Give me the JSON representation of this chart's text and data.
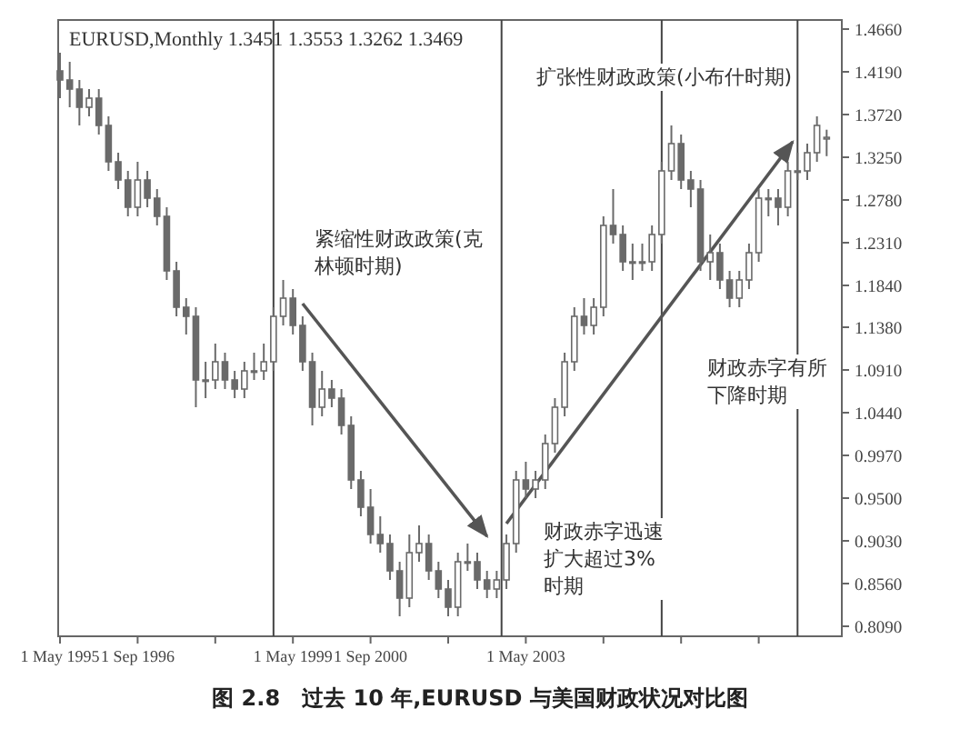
{
  "chart_data": {
    "type": "candlestick",
    "title": "EURUSD,Monthly  1.3451 1.3553 1.3262 1.3469",
    "color": "#6a6a6a",
    "x": [
      "1995-05",
      "1995-07",
      "1995-09",
      "1995-11",
      "1996-01",
      "1996-03",
      "1996-05",
      "1996-07",
      "1996-09",
      "1996-11",
      "1997-01",
      "1997-03",
      "1997-05",
      "1997-07",
      "1997-09",
      "1997-11",
      "1998-01",
      "1998-03",
      "1998-05",
      "1998-07",
      "1998-09",
      "1998-11",
      "1999-01",
      "1999-03",
      "1999-05",
      "1999-07",
      "1999-09",
      "1999-11",
      "2000-01",
      "2000-03",
      "2000-05",
      "2000-07",
      "2000-09",
      "2000-11",
      "2001-01",
      "2001-03",
      "2001-05",
      "2001-07",
      "2001-09",
      "2001-11",
      "2002-01",
      "2002-03",
      "2002-05",
      "2002-07",
      "2002-09",
      "2002-11",
      "2003-01",
      "2003-03",
      "2003-05",
      "2003-07",
      "2003-09",
      "2003-11",
      "2004-01",
      "2004-03",
      "2004-05",
      "2004-07",
      "2004-09",
      "2004-11",
      "2005-01",
      "2005-03",
      "2005-05",
      "2005-07",
      "2005-09",
      "2005-11",
      "2006-01",
      "2006-03",
      "2006-05",
      "2006-07",
      "2006-09",
      "2006-11",
      "2007-01",
      "2007-03",
      "2007-05",
      "2007-07",
      "2007-09",
      "2007-11",
      "2008-01",
      "2008-03",
      "2008-05",
      "2008-07"
    ],
    "ohlc": [
      [
        1.42,
        1.44,
        1.39,
        1.41
      ],
      [
        1.41,
        1.43,
        1.38,
        1.4
      ],
      [
        1.4,
        1.41,
        1.36,
        1.38
      ],
      [
        1.38,
        1.4,
        1.37,
        1.39
      ],
      [
        1.39,
        1.4,
        1.35,
        1.36
      ],
      [
        1.36,
        1.37,
        1.31,
        1.32
      ],
      [
        1.32,
        1.33,
        1.29,
        1.3
      ],
      [
        1.3,
        1.31,
        1.26,
        1.27
      ],
      [
        1.27,
        1.32,
        1.26,
        1.3
      ],
      [
        1.3,
        1.31,
        1.27,
        1.28
      ],
      [
        1.28,
        1.29,
        1.25,
        1.26
      ],
      [
        1.26,
        1.27,
        1.19,
        1.2
      ],
      [
        1.2,
        1.21,
        1.15,
        1.16
      ],
      [
        1.16,
        1.17,
        1.13,
        1.15
      ],
      [
        1.15,
        1.16,
        1.05,
        1.08
      ],
      [
        1.08,
        1.1,
        1.06,
        1.08
      ],
      [
        1.08,
        1.12,
        1.07,
        1.1
      ],
      [
        1.1,
        1.11,
        1.07,
        1.08
      ],
      [
        1.08,
        1.09,
        1.06,
        1.07
      ],
      [
        1.07,
        1.1,
        1.06,
        1.09
      ],
      [
        1.09,
        1.11,
        1.08,
        1.09
      ],
      [
        1.09,
        1.12,
        1.08,
        1.1
      ],
      [
        1.1,
        1.16,
        1.09,
        1.15
      ],
      [
        1.15,
        1.19,
        1.14,
        1.17
      ],
      [
        1.17,
        1.18,
        1.13,
        1.14
      ],
      [
        1.14,
        1.15,
        1.09,
        1.1
      ],
      [
        1.1,
        1.11,
        1.03,
        1.05
      ],
      [
        1.05,
        1.09,
        1.04,
        1.07
      ],
      [
        1.07,
        1.08,
        1.05,
        1.06
      ],
      [
        1.06,
        1.07,
        1.02,
        1.03
      ],
      [
        1.03,
        1.04,
        0.96,
        0.97
      ],
      [
        0.97,
        0.98,
        0.93,
        0.94
      ],
      [
        0.94,
        0.96,
        0.9,
        0.91
      ],
      [
        0.91,
        0.93,
        0.89,
        0.9
      ],
      [
        0.9,
        0.91,
        0.86,
        0.87
      ],
      [
        0.87,
        0.88,
        0.82,
        0.84
      ],
      [
        0.84,
        0.91,
        0.83,
        0.89
      ],
      [
        0.89,
        0.92,
        0.88,
        0.9
      ],
      [
        0.9,
        0.91,
        0.86,
        0.87
      ],
      [
        0.87,
        0.88,
        0.84,
        0.85
      ],
      [
        0.85,
        0.86,
        0.82,
        0.83
      ],
      [
        0.83,
        0.89,
        0.82,
        0.88
      ],
      [
        0.88,
        0.9,
        0.87,
        0.88
      ],
      [
        0.88,
        0.89,
        0.85,
        0.86
      ],
      [
        0.86,
        0.87,
        0.84,
        0.85
      ],
      [
        0.85,
        0.87,
        0.84,
        0.86
      ],
      [
        0.86,
        0.91,
        0.85,
        0.9
      ],
      [
        0.9,
        0.98,
        0.89,
        0.97
      ],
      [
        0.97,
        0.99,
        0.95,
        0.96
      ],
      [
        0.96,
        0.98,
        0.95,
        0.97
      ],
      [
        0.97,
        1.02,
        0.96,
        1.01
      ],
      [
        1.01,
        1.06,
        1.0,
        1.05
      ],
      [
        1.05,
        1.11,
        1.04,
        1.1
      ],
      [
        1.1,
        1.16,
        1.09,
        1.15
      ],
      [
        1.15,
        1.17,
        1.13,
        1.14
      ],
      [
        1.14,
        1.17,
        1.13,
        1.16
      ],
      [
        1.16,
        1.26,
        1.15,
        1.25
      ],
      [
        1.25,
        1.29,
        1.23,
        1.24
      ],
      [
        1.24,
        1.25,
        1.2,
        1.21
      ],
      [
        1.21,
        1.23,
        1.19,
        1.21
      ],
      [
        1.21,
        1.23,
        1.2,
        1.21
      ],
      [
        1.21,
        1.25,
        1.2,
        1.24
      ],
      [
        1.24,
        1.32,
        1.23,
        1.31
      ],
      [
        1.31,
        1.36,
        1.3,
        1.34
      ],
      [
        1.34,
        1.35,
        1.29,
        1.3
      ],
      [
        1.3,
        1.31,
        1.27,
        1.29
      ],
      [
        1.29,
        1.3,
        1.2,
        1.21
      ],
      [
        1.21,
        1.24,
        1.19,
        1.22
      ],
      [
        1.22,
        1.23,
        1.18,
        1.19
      ],
      [
        1.19,
        1.2,
        1.16,
        1.17
      ],
      [
        1.17,
        1.2,
        1.16,
        1.19
      ],
      [
        1.19,
        1.23,
        1.18,
        1.22
      ],
      [
        1.22,
        1.29,
        1.21,
        1.28
      ],
      [
        1.28,
        1.29,
        1.26,
        1.28
      ],
      [
        1.28,
        1.29,
        1.25,
        1.27
      ],
      [
        1.27,
        1.32,
        1.26,
        1.31
      ],
      [
        1.31,
        1.33,
        1.3,
        1.31
      ],
      [
        1.31,
        1.34,
        1.3,
        1.33
      ],
      [
        1.33,
        1.37,
        1.32,
        1.36
      ],
      [
        1.3451,
        1.3553,
        1.3262,
        1.3469
      ]
    ],
    "series": [
      {
        "type": "line",
        "color": "#555555",
        "x": [
          "1999-07",
          "2002-09"
        ],
        "values": [
          1.164,
          0.908
        ]
      },
      {
        "type": "line",
        "color": "#555555",
        "x": [
          "2003-01",
          "2007-12"
        ],
        "values": [
          0.922,
          1.342
        ]
      }
    ],
    "xlim": [
      "1995-05",
      "2008-09"
    ],
    "xticks": [
      {
        "value": "1995-05",
        "label": "1 May 1995"
      },
      {
        "value": "1996-09",
        "label": "1 Sep 1996"
      },
      {
        "value": "1998-01",
        "label": null
      },
      {
        "value": "1999-05",
        "label": "1 May 1999"
      },
      {
        "value": "2000-09",
        "label": "1 Sep 2000"
      },
      {
        "value": "2002-01",
        "label": null
      },
      {
        "value": "2003-05",
        "label": "1 May 2003"
      },
      {
        "value": "2004-09",
        "label": null
      },
      {
        "value": "2006-01",
        "label": null
      },
      {
        "value": "2007-05",
        "label": null
      }
    ],
    "ylim": [
      0.798,
      1.476
    ],
    "yticks": [
      {
        "value": 1.466,
        "label": "1.4660"
      },
      {
        "value": 1.419,
        "label": "1.4190"
      },
      {
        "value": 1.372,
        "label": "1.3720"
      },
      {
        "value": 1.325,
        "label": "1.3250"
      },
      {
        "value": 1.278,
        "label": "1.2780"
      },
      {
        "value": 1.231,
        "label": "1.2310"
      },
      {
        "value": 1.184,
        "label": "1.1840"
      },
      {
        "value": 1.138,
        "label": "1.1380"
      },
      {
        "value": 1.091,
        "label": "1.0910"
      },
      {
        "value": 1.044,
        "label": "1.0440"
      },
      {
        "value": 0.997,
        "label": "0.9970"
      },
      {
        "value": 0.95,
        "label": "0.9500"
      },
      {
        "value": 0.903,
        "label": "0.9030"
      },
      {
        "value": 0.856,
        "label": "0.8560"
      },
      {
        "value": 0.809,
        "label": "0.8090"
      }
    ],
    "ref_lines": [
      {
        "axis": "x",
        "value": "1999-01",
        "color": "#444444"
      },
      {
        "axis": "x",
        "value": "2002-12",
        "color": "#444444"
      },
      {
        "axis": "x",
        "value": "2005-09",
        "color": "#444444"
      },
      {
        "axis": "x",
        "value": "2008-01",
        "color": "#444444"
      }
    ],
    "grid": false,
    "annotations": [
      "紧缩性财政政策(克林顿时期)",
      "扩张性财政政策(小布什时期)",
      "财政赤字迅速扩大超过3%时期",
      "财政赤字有所下降时期",
      "图 2.8　过去 10 年,EURUSD 与美国财政状况对比图"
    ]
  }
}
